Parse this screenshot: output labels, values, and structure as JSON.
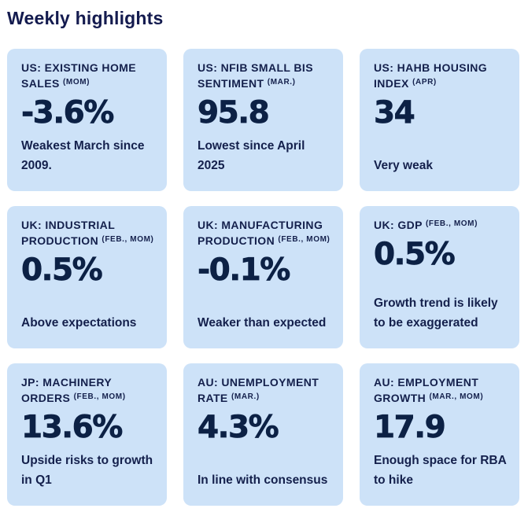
{
  "page": {
    "title": "Weekly highlights"
  },
  "colors": {
    "page_bg": "#ffffff",
    "card_bg": "#cde2f8",
    "navy": "#14204c",
    "value_navy": "#0c2145",
    "heading_navy": "#141b4f"
  },
  "cards": [
    {
      "title": "US: EXISTING HOME SALES",
      "annotation": "(MOM)",
      "value": "-3.6%",
      "note": "Weakest March since 2009."
    },
    {
      "title": "US: NFIB SMALL BIS SENTIMENT",
      "annotation": "(MAR.)",
      "value": "95.8",
      "note": "Lowest since April 2025"
    },
    {
      "title": "US: HAHB HOUSING INDEX",
      "annotation": "(APR)",
      "value": "34",
      "note": "Very weak"
    },
    {
      "title": "UK: INDUSTRIAL PRODUCTION",
      "annotation": "(FEB., MOM)",
      "value": "0.5%",
      "note": "Above expectations"
    },
    {
      "title": "UK: MANUFACTURING PRODUCTION",
      "annotation": "(FEB., MOM)",
      "value": "-0.1%",
      "note": "Weaker than expected"
    },
    {
      "title": "UK: GDP",
      "annotation": "(FEB., MOM)",
      "value": "0.5%",
      "note": "Growth trend is likely to be exaggerated"
    },
    {
      "title": "JP: MACHINERY ORDERS",
      "annotation": "(FEB., MOM)",
      "value": "13.6%",
      "note": "Upside risks to growth in Q1"
    },
    {
      "title": "AU: UNEMPLOYMENT RATE",
      "annotation": "(MAR.)",
      "value": "4.3%",
      "note": "In line with consensus"
    },
    {
      "title": "AU: EMPLOYMENT GROWTH",
      "annotation": "(MAR., MOM)",
      "value": "17.9",
      "note": "Enough space for RBA to hike"
    }
  ],
  "chart_data": {
    "type": "table",
    "title": "Weekly highlights",
    "columns": [
      "indicator",
      "period",
      "value",
      "comment"
    ],
    "rows": [
      [
        "US: EXISTING HOME SALES",
        "MOM",
        "-3.6%",
        "Weakest March since 2009."
      ],
      [
        "US: NFIB SMALL BIS SENTIMENT",
        "MAR.",
        "95.8",
        "Lowest since April 2025"
      ],
      [
        "US: HAHB HOUSING INDEX",
        "APR",
        "34",
        "Very weak"
      ],
      [
        "UK: INDUSTRIAL PRODUCTION",
        "FEB., MOM",
        "0.5%",
        "Above expectations"
      ],
      [
        "UK: MANUFACTURING PRODUCTION",
        "FEB., MOM",
        "-0.1%",
        "Weaker than expected"
      ],
      [
        "UK: GDP",
        "FEB., MOM",
        "0.5%",
        "Growth trend is likely to be exaggerated"
      ],
      [
        "JP: MACHINERY ORDERS",
        "FEB., MOM",
        "13.6%",
        "Upside risks to growth in Q1"
      ],
      [
        "AU: UNEMPLOYMENT RATE",
        "MAR.",
        "4.3%",
        "In line with consensus"
      ],
      [
        "AU: EMPLOYMENT GROWTH",
        "MAR., MOM",
        "17.9",
        "Enough space for RBA to hike"
      ]
    ]
  }
}
